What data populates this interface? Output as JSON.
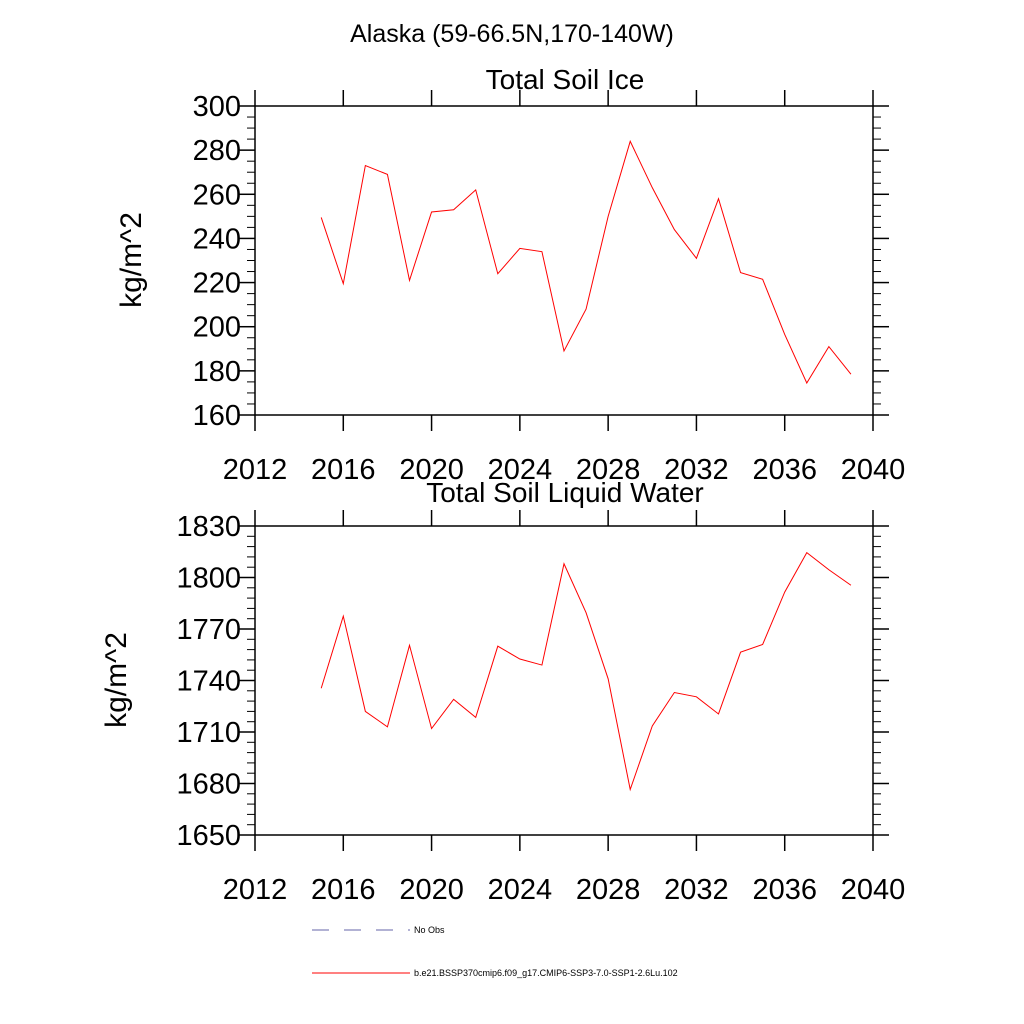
{
  "figure": {
    "region_title": "Alaska (59-66.5N,170-140W)"
  },
  "chart_data": [
    {
      "type": "line",
      "title": "Total Soil Ice",
      "ylabel": "kg/m^2",
      "xlabel": "",
      "xlim": [
        2012,
        2040
      ],
      "ylim": [
        160,
        300
      ],
      "x_ticks": [
        2012,
        2016,
        2020,
        2024,
        2028,
        2032,
        2036,
        2040
      ],
      "y_ticks": [
        160,
        180,
        200,
        220,
        240,
        260,
        280,
        300
      ],
      "x_tick_labels": [
        "2012",
        "2016",
        "2020",
        "2024",
        "2028",
        "2032",
        "2036",
        "2040"
      ],
      "y_tick_labels": [
        "160",
        "180",
        "200",
        "220",
        "240",
        "260",
        "280",
        "300"
      ],
      "grid": false,
      "series": [
        {
          "name": "b.e21.BSSP370cmip6.f09_g17.CMIP6-SSP3-7.0-SSP1-2.6Lu.102",
          "color": "#ff0000",
          "x": [
            2015,
            2016,
            2017,
            2018,
            2019,
            2020,
            2021,
            2022,
            2023,
            2024,
            2025,
            2026,
            2027,
            2028,
            2029,
            2030,
            2031,
            2032,
            2033,
            2034,
            2035,
            2036,
            2037,
            2038,
            2039
          ],
          "values": [
            249.5,
            219.5,
            273,
            269,
            221,
            252,
            253,
            262,
            224,
            235.5,
            234,
            189,
            208,
            250,
            284,
            263,
            244,
            231,
            258,
            224.5,
            221.5,
            196.5,
            174.5,
            191,
            178.5
          ]
        }
      ]
    },
    {
      "type": "line",
      "title": "Total Soil Liquid Water",
      "ylabel": "kg/m^2",
      "xlabel": "",
      "xlim": [
        2012,
        2040
      ],
      "ylim": [
        1650,
        1830
      ],
      "x_ticks": [
        2012,
        2016,
        2020,
        2024,
        2028,
        2032,
        2036,
        2040
      ],
      "y_ticks": [
        1650,
        1680,
        1710,
        1740,
        1770,
        1800,
        1830
      ],
      "x_tick_labels": [
        "2012",
        "2016",
        "2020",
        "2024",
        "2028",
        "2032",
        "2036",
        "2040"
      ],
      "y_tick_labels": [
        "1650",
        "1680",
        "1710",
        "1740",
        "1770",
        "1800",
        "1830"
      ],
      "grid": false,
      "series": [
        {
          "name": "b.e21.BSSP370cmip6.f09_g17.CMIP6-SSP3-7.0-SSP1-2.6Lu.102",
          "color": "#ff0000",
          "x": [
            2015,
            2016,
            2017,
            2018,
            2019,
            2020,
            2021,
            2022,
            2023,
            2024,
            2025,
            2026,
            2027,
            2028,
            2029,
            2030,
            2031,
            2032,
            2033,
            2034,
            2035,
            2036,
            2037,
            2038,
            2039
          ],
          "values": [
            1735.5,
            1777.5,
            1722,
            1713,
            1760.5,
            1712,
            1729,
            1718.5,
            1760,
            1752.5,
            1749,
            1808,
            1779.5,
            1741,
            1676.5,
            1713.5,
            1733,
            1730.5,
            1720.5,
            1756.5,
            1761,
            1791.5,
            1814.5,
            1804.5,
            1795.5
          ]
        }
      ]
    }
  ],
  "legend": {
    "placement": "bottom",
    "entries": [
      {
        "label": "No Obs",
        "color": "#6666aa",
        "style": "dashed"
      },
      {
        "label": "b.e21.BSSP370cmip6.f09_g17.CMIP6-SSP3-7.0-SSP1-2.6Lu.102",
        "color": "#ff0000",
        "style": "solid"
      }
    ]
  }
}
